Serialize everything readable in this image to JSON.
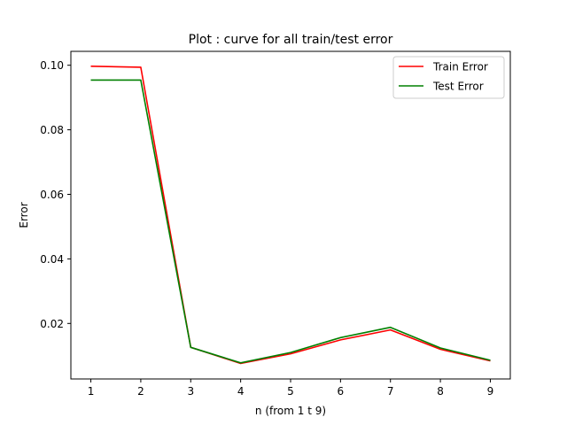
{
  "chart_data": {
    "type": "line",
    "title": "Plot : curve for all train/test error",
    "xlabel": "n (from 1 t 9)",
    "ylabel": "Error",
    "x": [
      1,
      2,
      3,
      4,
      5,
      6,
      7,
      8,
      9
    ],
    "xticks": [
      "1",
      "2",
      "3",
      "4",
      "5",
      "6",
      "7",
      "8",
      "9"
    ],
    "yticks": [
      0.02,
      0.04,
      0.06,
      0.08,
      0.1
    ],
    "ytick_labels": [
      "0.02",
      "0.04",
      "0.06",
      "0.08",
      "0.10"
    ],
    "xlim": [
      0.6,
      9.4
    ],
    "ylim": [
      0.0028,
      0.1043
    ],
    "grid": false,
    "legend_position": "top-right",
    "series": [
      {
        "name": "Train Error",
        "color": "#ff0000",
        "values": [
          0.0997,
          0.0994,
          0.0126,
          0.0076,
          0.0106,
          0.0149,
          0.018,
          0.012,
          0.0084
        ]
      },
      {
        "name": "Test Error",
        "color": "#008000",
        "values": [
          0.0954,
          0.0954,
          0.0126,
          0.0078,
          0.011,
          0.0156,
          0.0188,
          0.0124,
          0.0086
        ]
      }
    ]
  }
}
